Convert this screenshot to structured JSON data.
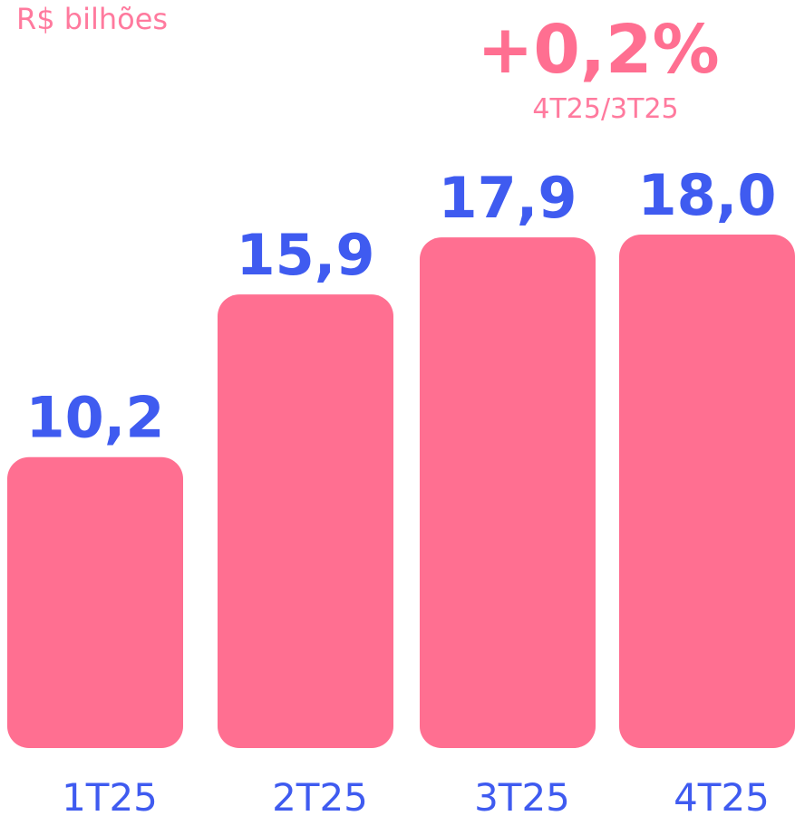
{
  "chart_data": {
    "type": "bar",
    "subtitle": "R$ bilhões",
    "annotation": {
      "value": "+0,2%",
      "label": "4T25/3T25"
    },
    "categories": [
      "1T25",
      "2T25",
      "3T25",
      "4T25"
    ],
    "values": [
      10.2,
      15.9,
      17.9,
      18.0
    ],
    "value_labels": [
      "10,2",
      "15,9",
      "17,9",
      "18,0"
    ],
    "color": "#ff6f91"
  }
}
